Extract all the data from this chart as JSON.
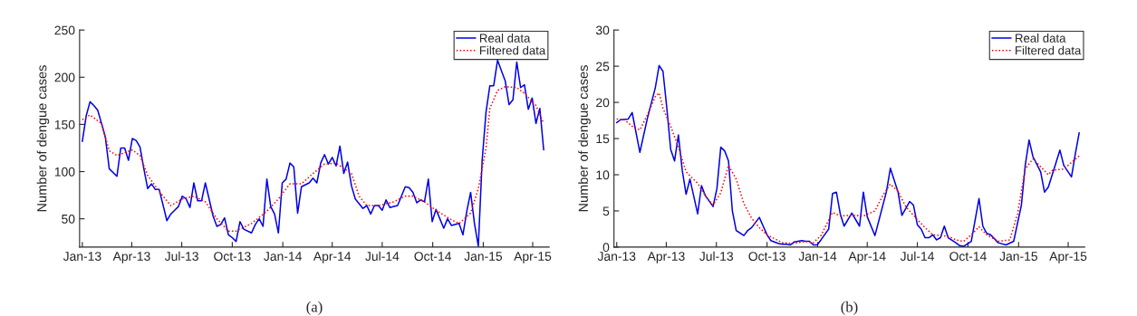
{
  "chart_data": [
    {
      "type": "line",
      "ylabel": "Number of dengue cases",
      "annotations": [
        "(a)"
      ],
      "legend": "top right",
      "grid": false,
      "xlim": [
        "2012-12-27",
        "2015-05-01"
      ],
      "ylim": [
        20,
        250
      ],
      "yticks": [
        50,
        100,
        150,
        200,
        250
      ],
      "xticks": [
        {
          "value": "2013-01-01",
          "label": "Jan-13"
        },
        {
          "value": "2013-04-01",
          "label": "Apr-13"
        },
        {
          "value": "2013-07-01",
          "label": "Jul-13"
        },
        {
          "value": "2013-10-01",
          "label": "Oct-13"
        },
        {
          "value": "2014-01-01",
          "label": "Jan-14"
        },
        {
          "value": "2014-04-01",
          "label": "Apr-14"
        },
        {
          "value": "2014-07-01",
          "label": "Jul-14"
        },
        {
          "value": "2014-10-01",
          "label": "Oct-14"
        },
        {
          "value": "2015-01-01",
          "label": "Jan-15"
        },
        {
          "value": "2015-04-01",
          "label": "Apr-15"
        }
      ],
      "series": [
        {
          "name": "Real data",
          "color": "#0000e6",
          "line_style": "solid",
          "x": [
            "2013-01-01",
            "2013-01-08",
            "2013-01-15",
            "2013-01-22",
            "2013-01-29",
            "2013-02-05",
            "2013-02-12",
            "2013-02-19",
            "2013-03-05",
            "2013-03-12",
            "2013-03-19",
            "2013-03-26",
            "2013-04-02",
            "2013-04-09",
            "2013-04-16",
            "2013-04-23",
            "2013-04-30",
            "2013-05-07",
            "2013-05-14",
            "2013-05-21",
            "2013-06-04",
            "2013-06-11",
            "2013-06-18",
            "2013-06-25",
            "2013-07-02",
            "2013-07-09",
            "2013-07-16",
            "2013-07-23",
            "2013-07-30",
            "2013-08-06",
            "2013-08-13",
            "2013-08-27",
            "2013-09-03",
            "2013-09-10",
            "2013-09-17",
            "2013-09-24",
            "2013-10-01",
            "2013-10-08",
            "2013-10-15",
            "2013-10-22",
            "2013-11-05",
            "2013-11-12",
            "2013-11-19",
            "2013-11-26",
            "2013-12-03",
            "2013-12-10",
            "2013-12-17",
            "2013-12-24",
            "2013-12-31",
            "2014-01-07",
            "2014-01-14",
            "2014-01-21",
            "2014-01-28",
            "2014-02-04",
            "2014-02-18",
            "2014-02-25",
            "2014-03-04",
            "2014-03-11",
            "2014-03-18",
            "2014-03-25",
            "2014-04-01",
            "2014-04-08",
            "2014-04-15",
            "2014-04-22",
            "2014-04-29",
            "2014-05-06",
            "2014-05-13",
            "2014-05-27",
            "2014-06-03",
            "2014-06-10",
            "2014-06-17",
            "2014-06-24",
            "2014-07-01",
            "2014-07-08",
            "2014-07-15",
            "2014-07-22",
            "2014-07-29",
            "2014-08-12",
            "2014-08-19",
            "2014-08-26",
            "2014-09-02",
            "2014-09-09",
            "2014-09-16",
            "2014-09-23",
            "2014-09-30",
            "2014-10-07",
            "2014-10-14",
            "2014-10-21",
            "2014-10-28",
            "2014-11-04",
            "2014-11-18",
            "2014-11-25",
            "2014-12-02",
            "2014-12-09",
            "2014-12-16",
            "2014-12-23",
            "2014-12-30",
            "2015-01-06",
            "2015-01-13",
            "2015-01-20",
            "2015-01-27",
            "2015-02-10",
            "2015-02-17",
            "2015-02-24",
            "2015-03-03",
            "2015-03-10",
            "2015-03-17",
            "2015-03-24",
            "2015-03-31",
            "2015-04-07",
            "2015-04-14",
            "2015-04-21"
          ],
          "values": [
            132,
            159,
            174,
            170,
            165,
            151,
            136,
            103,
            95,
            125,
            125,
            112,
            135,
            133,
            126,
            103,
            82,
            87,
            81,
            81,
            48,
            55,
            59,
            63,
            74,
            71,
            62,
            88,
            69,
            69,
            88,
            53,
            42,
            44,
            51,
            33,
            30,
            26,
            47,
            39,
            35,
            44,
            50,
            42,
            92,
            63,
            55,
            35,
            88,
            92,
            109,
            105,
            56,
            84,
            88,
            93,
            88,
            109,
            118,
            108,
            115,
            106,
            127,
            98,
            110,
            85,
            71,
            61,
            64,
            55,
            64,
            64,
            59,
            70,
            62,
            63,
            64,
            84,
            83,
            78,
            67,
            70,
            68,
            92,
            47,
            60,
            50,
            40,
            50,
            43,
            45,
            33,
            58,
            78,
            45,
            21,
            112,
            163,
            191,
            191,
            218,
            196,
            171,
            176,
            216,
            189,
            192,
            166,
            178,
            151,
            167,
            123
          ]
        },
        {
          "name": "Filtered data",
          "color": "#ff0000",
          "line_style": "dotted",
          "x": [
            "2013-01-01",
            "2013-01-15",
            "2013-02-05",
            "2013-02-19",
            "2013-03-05",
            "2013-03-19",
            "2013-04-02",
            "2013-04-16",
            "2013-04-30",
            "2013-05-21",
            "2013-06-11",
            "2013-07-02",
            "2013-07-23",
            "2013-08-13",
            "2013-09-03",
            "2013-09-24",
            "2013-10-08",
            "2013-11-05",
            "2013-12-03",
            "2013-12-24",
            "2014-01-14",
            "2014-02-04",
            "2014-02-25",
            "2014-03-18",
            "2014-04-08",
            "2014-05-06",
            "2014-05-20",
            "2014-06-03",
            "2014-06-24",
            "2014-07-22",
            "2014-08-12",
            "2014-08-26",
            "2014-09-16",
            "2014-10-07",
            "2014-11-04",
            "2014-11-18",
            "2014-12-09",
            "2014-12-23",
            "2015-01-06",
            "2015-01-13",
            "2015-01-27",
            "2015-02-10",
            "2015-03-03",
            "2015-03-17",
            "2015-04-07",
            "2015-04-21"
          ],
          "values": [
            155,
            160,
            151,
            122,
            117,
            120,
            123,
            117,
            96,
            79,
            64,
            71,
            74,
            68,
            50,
            37,
            37,
            45,
            58,
            71,
            87,
            87,
            98,
            108,
            109,
            98,
            74,
            64,
            64,
            68,
            74,
            74,
            68,
            59,
            49,
            45,
            56,
            82,
            125,
            167,
            186,
            190,
            189,
            183,
            170,
            151
          ]
        }
      ]
    },
    {
      "type": "line",
      "ylabel": "Number of dengue cases",
      "annotations": [
        "(b)"
      ],
      "legend": "top right",
      "grid": false,
      "xlim": [
        "2012-12-27",
        "2015-05-01"
      ],
      "ylim": [
        0,
        30
      ],
      "yticks": [
        0,
        5,
        10,
        15,
        20,
        25,
        30
      ],
      "xticks": [
        {
          "value": "2013-01-01",
          "label": "Jan-13"
        },
        {
          "value": "2013-04-01",
          "label": "Apr-13"
        },
        {
          "value": "2013-07-01",
          "label": "Jul-13"
        },
        {
          "value": "2013-10-01",
          "label": "Oct-13"
        },
        {
          "value": "2014-01-01",
          "label": "Jan-14"
        },
        {
          "value": "2014-04-01",
          "label": "Apr-14"
        },
        {
          "value": "2014-07-01",
          "label": "Jul-14"
        },
        {
          "value": "2014-10-01",
          "label": "Oct-14"
        },
        {
          "value": "2015-01-01",
          "label": "Jan-15"
        },
        {
          "value": "2015-04-01",
          "label": "Apr-15"
        }
      ],
      "series": [
        {
          "name": "Real data",
          "color": "#0000e6",
          "line_style": "solid",
          "x": [
            "2013-01-01",
            "2013-01-08",
            "2013-01-22",
            "2013-01-29",
            "2013-02-12",
            "2013-02-26",
            "2013-03-12",
            "2013-03-19",
            "2013-03-26",
            "2013-04-02",
            "2013-04-09",
            "2013-04-16",
            "2013-04-23",
            "2013-04-30",
            "2013-05-07",
            "2013-05-14",
            "2013-05-28",
            "2013-06-04",
            "2013-06-11",
            "2013-06-25",
            "2013-07-02",
            "2013-07-09",
            "2013-07-16",
            "2013-07-23",
            "2013-07-30",
            "2013-08-06",
            "2013-08-20",
            "2013-08-27",
            "2013-09-03",
            "2013-09-17",
            "2013-09-24",
            "2013-10-01",
            "2013-10-08",
            "2013-10-22",
            "2013-10-29",
            "2013-11-05",
            "2013-11-12",
            "2013-11-19",
            "2013-12-03",
            "2013-12-10",
            "2013-12-17",
            "2013-12-24",
            "2013-12-31",
            "2014-01-07",
            "2014-01-21",
            "2014-01-28",
            "2014-02-04",
            "2014-02-11",
            "2014-02-18",
            "2014-03-04",
            "2014-03-18",
            "2014-03-25",
            "2014-04-01",
            "2014-04-15",
            "2014-05-06",
            "2014-05-13",
            "2014-05-27",
            "2014-06-03",
            "2014-06-17",
            "2014-06-24",
            "2014-07-01",
            "2014-07-08",
            "2014-07-15",
            "2014-07-22",
            "2014-07-29",
            "2014-08-05",
            "2014-08-12",
            "2014-08-19",
            "2014-08-26",
            "2014-09-09",
            "2014-09-16",
            "2014-09-23",
            "2014-10-07",
            "2014-10-21",
            "2014-10-28",
            "2014-11-04",
            "2014-11-11",
            "2014-11-25",
            "2014-12-09",
            "2014-12-23",
            "2015-01-06",
            "2015-01-13",
            "2015-01-20",
            "2015-01-27",
            "2015-02-10",
            "2015-02-17",
            "2015-02-24",
            "2015-03-10",
            "2015-03-17",
            "2015-03-24",
            "2015-04-07",
            "2015-04-14",
            "2015-04-21"
          ],
          "values": [
            17.2,
            17.6,
            17.7,
            18.6,
            13.1,
            17.9,
            22.0,
            25.1,
            24.3,
            19.2,
            13.5,
            11.9,
            15.5,
            10.6,
            7.3,
            9.4,
            4.6,
            8.5,
            7.1,
            5.6,
            8.1,
            13.8,
            13.3,
            11.9,
            5.0,
            2.3,
            1.6,
            2.3,
            2.7,
            4.1,
            2.9,
            1.7,
            0.9,
            0.5,
            0.4,
            0.4,
            0.3,
            0.7,
            0.9,
            0.8,
            0.8,
            0.3,
            0.3,
            1.0,
            2.5,
            7.4,
            7.6,
            4.6,
            2.9,
            4.7,
            2.9,
            7.6,
            4.2,
            1.6,
            7.7,
            10.9,
            7.6,
            4.4,
            6.3,
            5.8,
            3.1,
            2.5,
            1.3,
            1.3,
            1.7,
            1.0,
            1.3,
            2.9,
            1.3,
            0.6,
            0.2,
            0.1,
            0.8,
            6.7,
            2.9,
            1.9,
            1.7,
            0.6,
            0.3,
            0.8,
            5.8,
            11.3,
            14.8,
            12.5,
            10.4,
            7.6,
            8.3,
            11.7,
            13.4,
            11.3,
            9.7,
            12.9,
            15.8
          ]
        },
        {
          "name": "Filtered data",
          "color": "#ff0000",
          "line_style": "dotted",
          "x": [
            "2013-01-01",
            "2013-01-15",
            "2013-01-29",
            "2013-02-12",
            "2013-02-26",
            "2013-03-12",
            "2013-03-19",
            "2013-03-26",
            "2013-04-09",
            "2013-04-23",
            "2013-05-07",
            "2013-05-28",
            "2013-06-11",
            "2013-06-25",
            "2013-07-09",
            "2013-07-23",
            "2013-08-06",
            "2013-08-20",
            "2013-09-03",
            "2013-09-17",
            "2013-10-01",
            "2013-10-29",
            "2013-11-19",
            "2013-12-10",
            "2013-12-24",
            "2014-01-07",
            "2014-01-28",
            "2014-02-11",
            "2014-03-04",
            "2014-03-25",
            "2014-04-15",
            "2014-04-29",
            "2014-05-13",
            "2014-05-27",
            "2014-06-10",
            "2014-07-01",
            "2014-07-15",
            "2014-07-29",
            "2014-08-26",
            "2014-09-09",
            "2014-09-23",
            "2014-10-07",
            "2014-10-21",
            "2014-11-04",
            "2014-11-25",
            "2014-12-16",
            "2014-12-30",
            "2015-01-13",
            "2015-01-27",
            "2015-02-24",
            "2015-03-03",
            "2015-03-24",
            "2015-04-07",
            "2015-04-21"
          ],
          "values": [
            17.7,
            17.6,
            16.7,
            16.2,
            18.3,
            20.8,
            21.3,
            19.2,
            16.7,
            13.8,
            10.4,
            8.8,
            7.1,
            5.8,
            7.5,
            11.3,
            9.4,
            6.0,
            4.0,
            2.7,
            1.7,
            0.6,
            0.5,
            0.8,
            0.6,
            1.6,
            4.8,
            4.3,
            4.4,
            4.3,
            5.0,
            7.1,
            8.7,
            7.7,
            5.6,
            3.8,
            2.7,
            1.7,
            1.5,
            1.0,
            0.8,
            1.7,
            2.8,
            1.7,
            0.8,
            1.0,
            4.6,
            10.8,
            12.2,
            10.0,
            10.6,
            10.8,
            11.7,
            12.6
          ]
        }
      ]
    }
  ]
}
